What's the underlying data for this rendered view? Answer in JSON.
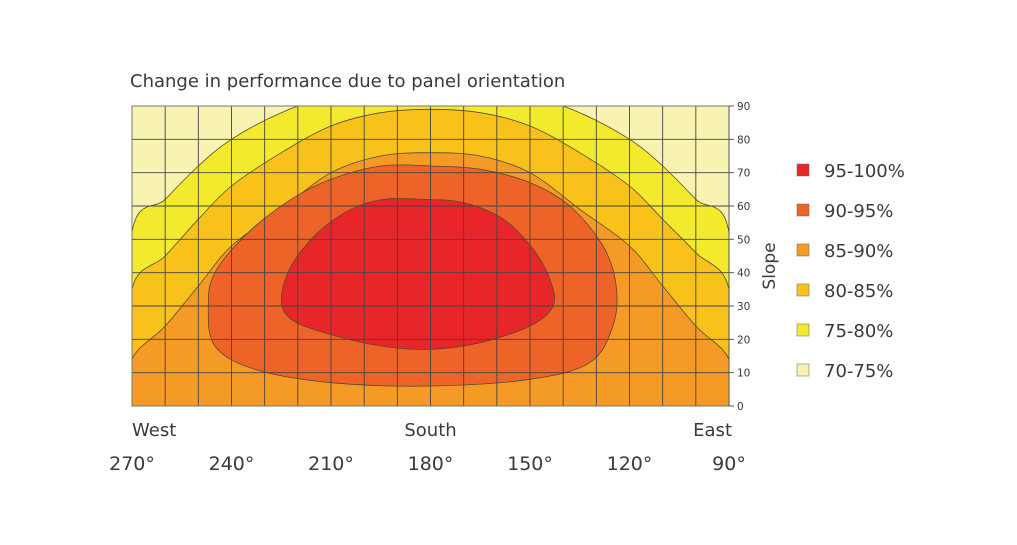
{
  "chart_data": {
    "type": "heatmap",
    "title": "Change in performance due to panel orientation",
    "ylabel": "Slope",
    "xlim": [
      270,
      90
    ],
    "ylim": [
      0,
      90
    ],
    "x_ticks": [
      "270°",
      "240°",
      "210°",
      "180°",
      "150°",
      "120°",
      "90°"
    ],
    "x_tick_values": [
      270,
      240,
      210,
      180,
      150,
      120,
      90
    ],
    "direction_labels": [
      {
        "text": "West",
        "x": 270
      },
      {
        "text": "South",
        "x": 180
      },
      {
        "text": "East",
        "x": 90
      }
    ],
    "y_ticks": [
      "0",
      "10",
      "20",
      "30",
      "40",
      "50",
      "60",
      "70",
      "80",
      "90"
    ],
    "y_tick_values": [
      0,
      10,
      20,
      30,
      40,
      50,
      60,
      70,
      80,
      90
    ],
    "grid": true,
    "legend_position": "right",
    "legend": [
      {
        "label": "95-100%",
        "color": "#e8262a"
      },
      {
        "label": "90-95%",
        "color": "#ee6327"
      },
      {
        "label": "85-90%",
        "color": "#f59a24"
      },
      {
        "label": "80-85%",
        "color": "#f9c21a"
      },
      {
        "label": "75-80%",
        "color": "#f3ea2d"
      },
      {
        "label": "70-75%",
        "color": "#f9f3b2"
      }
    ],
    "contours": [
      {
        "band": "75-80%",
        "points": [
          [
            270,
            52
          ],
          [
            260,
            62
          ],
          [
            250,
            72
          ],
          [
            240,
            80
          ],
          [
            225,
            88
          ],
          [
            210,
            93
          ],
          [
            195,
            95
          ],
          [
            180,
            96
          ],
          [
            165,
            95
          ],
          [
            150,
            93
          ],
          [
            135,
            88
          ],
          [
            120,
            80
          ],
          [
            110,
            72
          ],
          [
            100,
            62
          ],
          [
            90,
            52
          ],
          [
            90,
            0
          ],
          [
            270,
            0
          ]
        ]
      },
      {
        "band": "80-85%",
        "points": [
          [
            270,
            35
          ],
          [
            260,
            45
          ],
          [
            250,
            56
          ],
          [
            240,
            66
          ],
          [
            225,
            76
          ],
          [
            210,
            84
          ],
          [
            195,
            88
          ],
          [
            180,
            89
          ],
          [
            165,
            88
          ],
          [
            150,
            84
          ],
          [
            135,
            76
          ],
          [
            120,
            66
          ],
          [
            110,
            56
          ],
          [
            100,
            46
          ],
          [
            90,
            35
          ],
          [
            90,
            0
          ],
          [
            270,
            0
          ]
        ]
      },
      {
        "band": "85-90%",
        "points": [
          [
            270,
            14
          ],
          [
            260,
            24
          ],
          [
            250,
            36
          ],
          [
            240,
            48
          ],
          [
            225,
            59
          ],
          [
            210,
            70
          ],
          [
            195,
            75
          ],
          [
            180,
            76
          ],
          [
            165,
            75
          ],
          [
            150,
            70
          ],
          [
            135,
            59
          ],
          [
            120,
            48
          ],
          [
            110,
            36
          ],
          [
            100,
            24
          ],
          [
            90,
            14
          ],
          [
            90,
            0
          ],
          [
            270,
            0
          ]
        ]
      },
      {
        "band": "90-95%",
        "points": [
          [
            245,
            40
          ],
          [
            235,
            52
          ],
          [
            222,
            62
          ],
          [
            210,
            68
          ],
          [
            195,
            72
          ],
          [
            180,
            72
          ],
          [
            165,
            71
          ],
          [
            150,
            67
          ],
          [
            138,
            60
          ],
          [
            128,
            48
          ],
          [
            124,
            36
          ],
          [
            125,
            24
          ],
          [
            132,
            13
          ],
          [
            150,
            8
          ],
          [
            180,
            6
          ],
          [
            210,
            7
          ],
          [
            233,
            11
          ],
          [
            245,
            18
          ],
          [
            247,
            30
          ]
        ]
      },
      {
        "band": "95-100%",
        "points": [
          [
            225,
            32
          ],
          [
            222,
            42
          ],
          [
            214,
            52
          ],
          [
            204,
            59
          ],
          [
            194,
            62
          ],
          [
            182,
            62
          ],
          [
            170,
            61
          ],
          [
            158,
            56
          ],
          [
            149,
            47
          ],
          [
            144,
            38
          ],
          [
            143,
            30
          ],
          [
            150,
            24
          ],
          [
            165,
            19
          ],
          [
            180,
            17
          ],
          [
            195,
            18
          ],
          [
            212,
            22
          ],
          [
            222,
            26
          ]
        ]
      }
    ]
  }
}
